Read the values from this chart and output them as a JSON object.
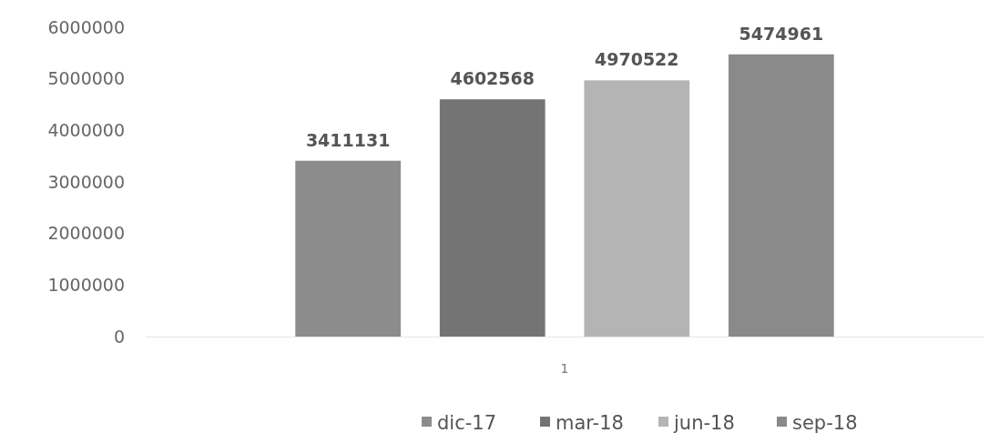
{
  "chart_data": {
    "type": "bar",
    "categories": [
      "1"
    ],
    "series": [
      {
        "name": "dic-17",
        "color": "#8c8c8c",
        "values": [
          3411131
        ]
      },
      {
        "name": "mar-18",
        "color": "#747474",
        "values": [
          4602568
        ]
      },
      {
        "name": "jun-18",
        "color": "#b4b4b4",
        "values": [
          4970522
        ]
      },
      {
        "name": "sep-18",
        "color": "#8a8a8a",
        "values": [
          5474961
        ]
      }
    ],
    "ylim": [
      0,
      6000000
    ],
    "yticks": [
      0,
      1000000,
      2000000,
      3000000,
      4000000,
      5000000,
      6000000
    ],
    "grid": false,
    "data_labels": true,
    "legend": "bottom"
  }
}
